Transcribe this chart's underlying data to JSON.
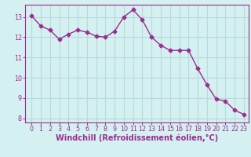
{
  "x": [
    0,
    1,
    2,
    3,
    4,
    5,
    6,
    7,
    8,
    9,
    10,
    11,
    12,
    13,
    14,
    15,
    16,
    17,
    18,
    19,
    20,
    21,
    22,
    23
  ],
  "y": [
    13.05,
    12.55,
    12.35,
    11.9,
    12.15,
    12.35,
    12.25,
    12.05,
    12.0,
    12.3,
    13.0,
    13.35,
    12.85,
    12.0,
    11.6,
    11.35,
    11.35,
    11.35,
    10.45,
    9.65,
    8.95,
    8.85,
    8.4,
    8.2
  ],
  "line_color": "#9b2d8e",
  "marker": "D",
  "markersize": 2.5,
  "linewidth": 1.0,
  "xlabel": "Windchill (Refroidissement éolien,°C)",
  "xlabel_color": "#9b2d8e",
  "bg_color": "#d4f0f0",
  "grid_color": "#b8dada",
  "tick_color": "#9b2d8e",
  "spine_color": "#9b2d8e",
  "ylim": [
    7.8,
    13.6
  ],
  "yticks": [
    8,
    9,
    10,
    11,
    12,
    13
  ],
  "xticks": [
    0,
    1,
    2,
    3,
    4,
    5,
    6,
    7,
    8,
    9,
    10,
    11,
    12,
    13,
    14,
    15,
    16,
    17,
    18,
    19,
    20,
    21,
    22,
    23
  ],
  "tick_fontsize": 5.8,
  "xlabel_fontsize": 7.0
}
